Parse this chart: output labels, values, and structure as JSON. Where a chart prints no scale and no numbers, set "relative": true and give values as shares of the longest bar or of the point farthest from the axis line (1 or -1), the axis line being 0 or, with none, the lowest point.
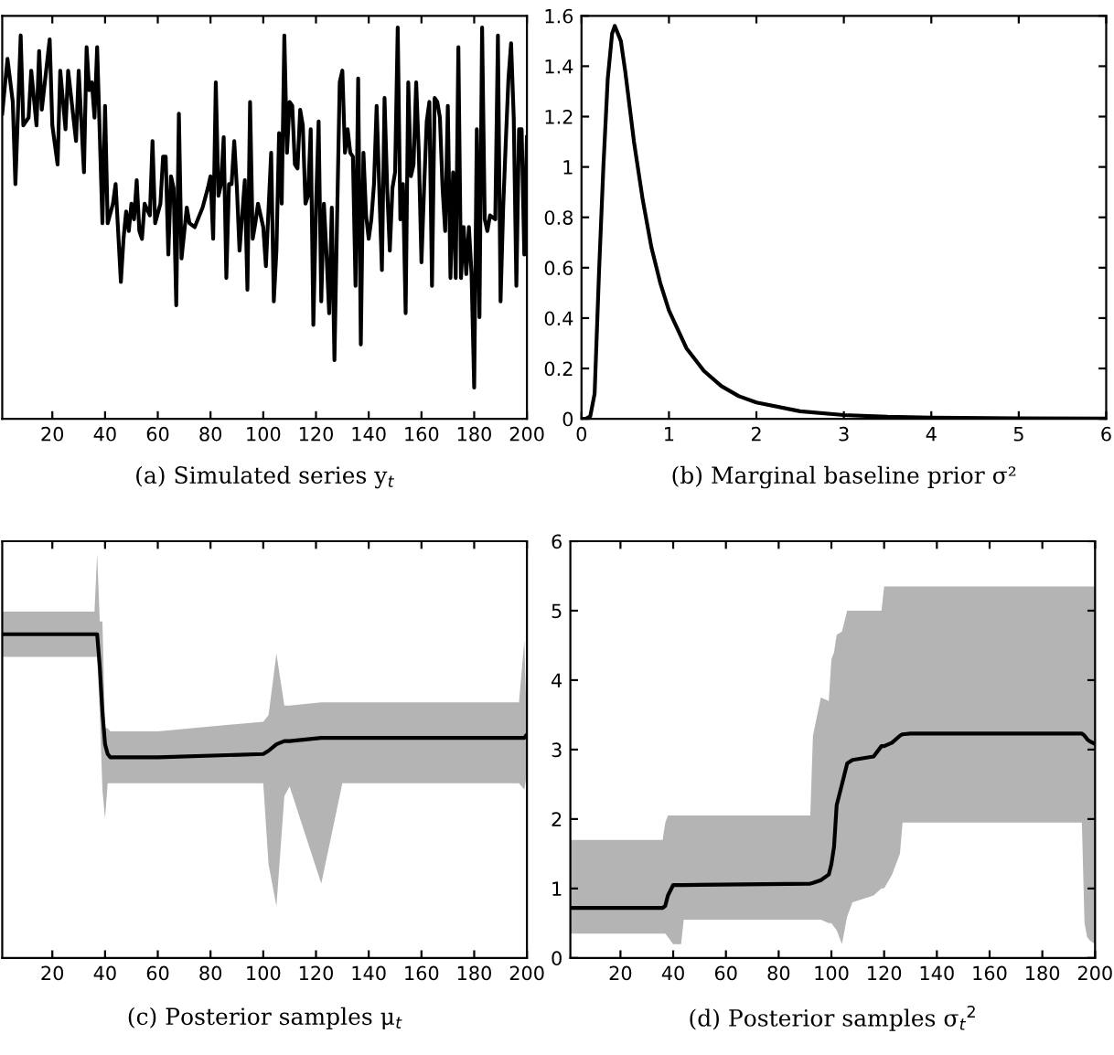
{
  "chart_data": [
    {
      "type": "line",
      "title": "(a) Simulated series y$_{t}$",
      "relative": true,
      "xlim": [
        1,
        200
      ],
      "xticks": [
        20,
        40,
        60,
        80,
        100,
        120,
        140,
        160,
        180,
        200
      ],
      "series": [
        {
          "color": "#000000",
          "x": [
            1,
            3,
            5,
            6,
            8,
            9,
            11,
            12,
            14,
            15,
            16,
            19,
            20,
            22,
            23,
            25,
            26,
            29,
            30,
            32,
            33,
            34,
            35,
            36,
            37,
            39,
            40,
            41,
            43,
            44,
            46,
            47,
            48,
            49,
            50,
            51,
            52,
            53,
            54,
            55,
            57,
            58,
            59,
            61,
            62,
            63,
            64,
            65,
            66,
            67,
            68,
            69,
            71,
            72,
            74,
            77,
            79,
            80,
            81,
            82,
            83,
            84,
            85,
            86,
            87,
            88,
            89,
            90,
            91,
            93,
            94,
            95,
            96,
            97,
            98,
            100,
            101,
            103,
            104,
            105,
            106,
            107,
            108,
            109,
            110,
            111,
            112,
            113,
            114,
            115,
            116,
            117,
            118,
            119,
            120,
            121,
            122,
            123,
            124,
            125,
            126,
            127,
            128,
            129,
            130,
            131,
            132,
            133,
            134,
            135,
            136,
            137,
            138,
            139,
            140,
            141,
            142,
            143,
            145,
            146,
            147,
            148,
            149,
            150,
            151,
            152,
            153,
            154,
            155,
            156,
            157,
            158,
            159,
            160,
            161,
            162,
            163,
            164,
            165,
            166,
            167,
            168,
            169,
            170,
            171,
            172,
            173,
            174,
            175,
            176,
            177,
            178,
            179,
            180,
            181,
            182,
            183,
            184,
            185,
            186,
            188,
            189,
            190,
            191,
            192,
            193,
            194,
            195,
            196,
            197,
            198,
            199,
            200
          ],
          "values": [
            0.78,
            0.92,
            0.81,
            0.6,
            0.98,
            0.75,
            0.77,
            0.89,
            0.75,
            0.94,
            0.79,
            0.97,
            0.75,
            0.65,
            0.89,
            0.74,
            0.89,
            0.71,
            0.89,
            0.63,
            0.95,
            0.84,
            0.86,
            0.77,
            0.95,
            0.5,
            0.8,
            0.5,
            0.55,
            0.6,
            0.35,
            0.46,
            0.53,
            0.48,
            0.55,
            0.51,
            0.61,
            0.48,
            0.46,
            0.55,
            0.52,
            0.71,
            0.5,
            0.55,
            0.67,
            0.67,
            0.42,
            0.62,
            0.59,
            0.29,
            0.78,
            0.41,
            0.54,
            0.5,
            0.49,
            0.54,
            0.59,
            0.62,
            0.46,
            0.86,
            0.57,
            0.6,
            0.72,
            0.36,
            0.6,
            0.6,
            0.71,
            0.59,
            0.43,
            0.61,
            0.33,
            0.81,
            0.46,
            0.5,
            0.55,
            0.49,
            0.39,
            0.68,
            0.3,
            0.43,
            0.73,
            0.55,
            0.98,
            0.68,
            0.81,
            0.8,
            0.65,
            0.64,
            0.79,
            0.75,
            0.55,
            0.57,
            0.74,
            0.24,
            0.54,
            0.76,
            0.3,
            0.55,
            0.42,
            0.27,
            0.54,
            0.15,
            0.51,
            0.86,
            0.89,
            0.68,
            0.74,
            0.68,
            0.67,
            0.34,
            0.87,
            0.19,
            0.68,
            0.52,
            0.46,
            0.51,
            0.6,
            0.8,
            0.38,
            0.82,
            0.59,
            0.43,
            0.59,
            0.63,
            1.0,
            0.51,
            0.6,
            0.27,
            0.86,
            0.62,
            0.65,
            0.86,
            0.68,
            0.4,
            0.59,
            0.76,
            0.81,
            0.34,
            0.82,
            0.81,
            0.77,
            0.59,
            0.48,
            0.8,
            0.36,
            0.63,
            0.36,
            0.95,
            0.36,
            0.49,
            0.37,
            0.49,
            0.37,
            0.08,
            0.74,
            0.26,
            1.0,
            0.51,
            0.48,
            0.52,
            0.51,
            0.98,
            0.3,
            0.54,
            0.71,
            0.87,
            0.96,
            0.77,
            0.34,
            0.74,
            0.74,
            0.42,
            0.72
          ]
        }
      ]
    },
    {
      "type": "line",
      "title": "(b) Marginal baseline prior σ²",
      "xlim": [
        0,
        6
      ],
      "xticks": [
        0,
        1,
        2,
        3,
        4,
        5,
        6
      ],
      "ylim": [
        0,
        1.6
      ],
      "yticks": [
        0,
        0.2,
        0.4,
        0.6,
        0.8,
        1,
        1.2,
        1.4,
        1.6
      ],
      "series": [
        {
          "color": "#000000",
          "x": [
            0,
            0.05,
            0.1,
            0.15,
            0.2,
            0.25,
            0.3,
            0.35,
            0.38,
            0.45,
            0.5,
            0.6,
            0.7,
            0.8,
            0.9,
            1.0,
            1.2,
            1.4,
            1.6,
            1.8,
            2.0,
            2.5,
            3,
            3.5,
            4,
            5,
            6
          ],
          "values": [
            0,
            0,
            0.01,
            0.1,
            0.58,
            1.0,
            1.35,
            1.53,
            1.56,
            1.5,
            1.38,
            1.1,
            0.87,
            0.68,
            0.54,
            0.43,
            0.28,
            0.19,
            0.13,
            0.09,
            0.065,
            0.03,
            0.015,
            0.008,
            0.005,
            0.002,
            0.001
          ]
        }
      ]
    },
    {
      "type": "line",
      "title": "(c) Posterior samples μ$_{t}$",
      "relative": true,
      "xlim": [
        1,
        200
      ],
      "xticks": [
        20,
        40,
        60,
        80,
        100,
        120,
        140,
        160,
        180,
        200
      ],
      "series": [
        {
          "color": "#000000",
          "x": [
            1,
            36,
            37,
            38,
            39,
            40,
            41,
            42,
            60,
            100,
            102,
            105,
            108,
            110,
            122,
            130,
            160,
            197,
            199,
            200
          ],
          "values": [
            1.0,
            1.0,
            1.0,
            0.9,
            0.76,
            0.66,
            0.63,
            0.62,
            0.62,
            0.63,
            0.64,
            0.66,
            0.67,
            0.67,
            0.68,
            0.68,
            0.68,
            0.68,
            0.68,
            0.69
          ],
          "upper": [
            1.07,
            1.07,
            1.25,
            1.04,
            1.04,
            0.71,
            0.71,
            0.7,
            0.7,
            0.73,
            0.75,
            0.94,
            0.78,
            0.78,
            0.79,
            0.79,
            0.79,
            0.79,
            0.98,
            0.71
          ],
          "lower": [
            0.93,
            0.93,
            0.93,
            0.76,
            0.52,
            0.43,
            0.54,
            0.54,
            0.54,
            0.54,
            0.29,
            0.16,
            0.5,
            0.53,
            0.23,
            0.54,
            0.54,
            0.54,
            0.52,
            0.57
          ]
        }
      ]
    },
    {
      "type": "line",
      "title": "(d) Posterior samples σ$_{t}$$^{2}$",
      "xlim": [
        1,
        200
      ],
      "xticks": [
        20,
        40,
        60,
        80,
        100,
        120,
        140,
        160,
        180,
        200
      ],
      "ylim": [
        0,
        6
      ],
      "yticks": [
        0,
        1,
        2,
        3,
        4,
        5,
        6
      ],
      "series": [
        {
          "color": "#000000",
          "x": [
            1,
            36,
            37,
            38,
            40,
            43,
            44,
            92,
            93,
            96,
            99,
            100,
            101,
            102,
            104,
            106,
            108,
            116,
            119,
            120,
            123,
            126,
            127,
            130,
            195,
            196,
            197,
            198,
            200
          ],
          "values": [
            0.72,
            0.72,
            0.75,
            0.9,
            1.05,
            1.05,
            1.05,
            1.07,
            1.08,
            1.12,
            1.2,
            1.35,
            1.6,
            2.2,
            2.5,
            2.8,
            2.85,
            2.9,
            3.05,
            3.05,
            3.1,
            3.2,
            3.22,
            3.23,
            3.23,
            3.2,
            3.15,
            3.12,
            3.08
          ],
          "upper": [
            1.7,
            1.7,
            1.95,
            2.05,
            2.05,
            2.05,
            2.05,
            2.05,
            3.2,
            3.75,
            3.7,
            4.3,
            4.4,
            4.65,
            4.7,
            5.0,
            5.0,
            5.0,
            5.0,
            5.35,
            5.35,
            5.35,
            5.35,
            5.35,
            5.35,
            5.35,
            5.35,
            5.35,
            5.35
          ],
          "lower": [
            0.35,
            0.35,
            0.35,
            0.3,
            0.2,
            0.2,
            0.55,
            0.55,
            0.55,
            0.55,
            0.5,
            0.5,
            0.45,
            0.4,
            0.2,
            0.6,
            0.8,
            0.9,
            1.0,
            1.0,
            1.2,
            1.5,
            1.95,
            1.95,
            1.95,
            0.5,
            0.3,
            0.25,
            0.2
          ]
        }
      ]
    }
  ]
}
